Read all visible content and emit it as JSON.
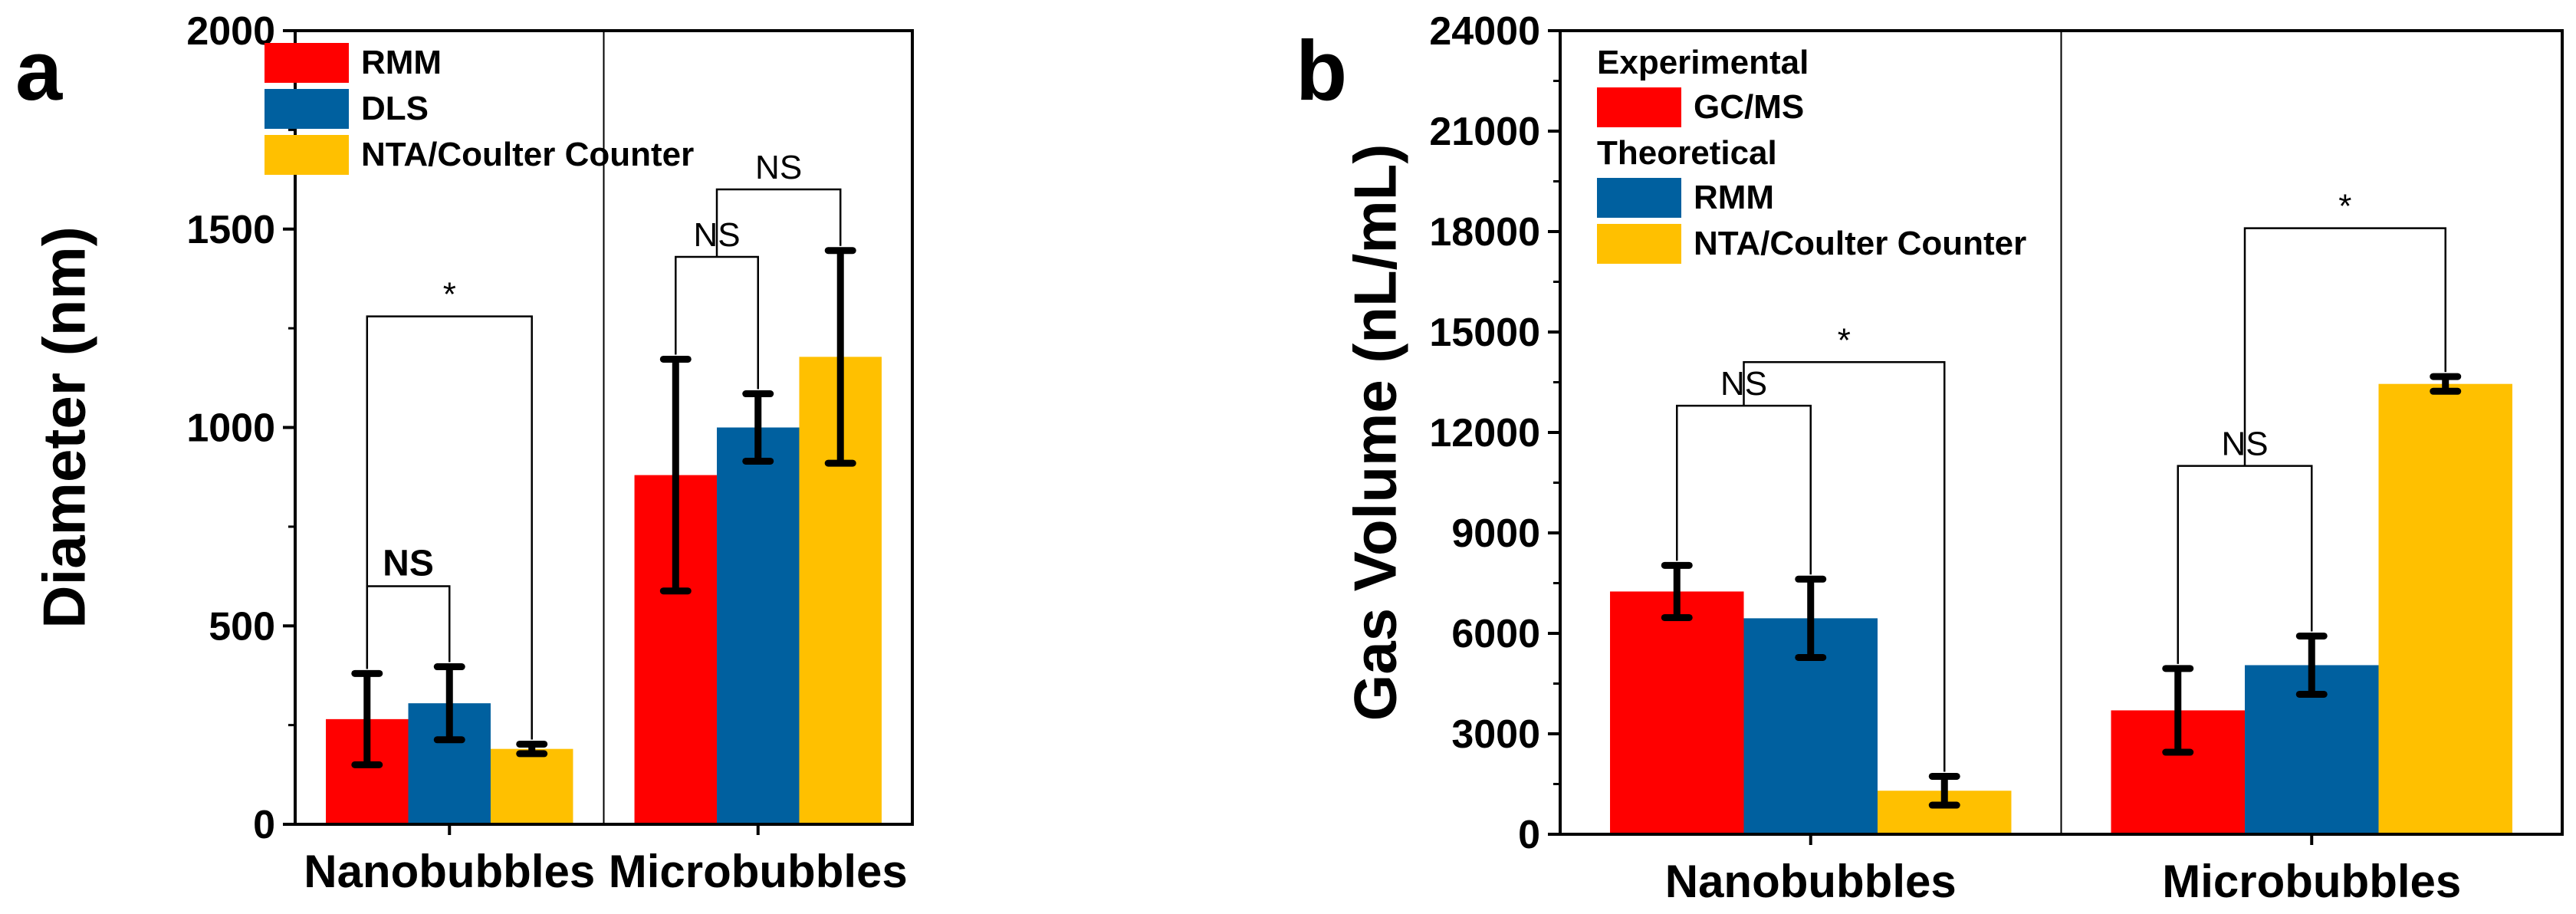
{
  "chart_data": [
    {
      "panel": "a",
      "type": "bar",
      "ylabel": "Diameter (nm)",
      "ylim": [
        0,
        2000
      ],
      "yticks": [
        0,
        500,
        1000,
        1500,
        2000
      ],
      "categories": [
        "Nanobubbles",
        "Microbubbles"
      ],
      "series": [
        {
          "name": "RMM",
          "color": "#ff0000",
          "values": [
            265,
            880
          ],
          "errors": [
            115,
            292
          ]
        },
        {
          "name": "DLS",
          "color": "#00609f",
          "values": [
            305,
            1000
          ],
          "errors": [
            92,
            85
          ]
        },
        {
          "name": "NTA/Coulter Counter",
          "color": "#ffc000",
          "values": [
            190,
            1178
          ],
          "errors": [
            12,
            268
          ]
        }
      ],
      "legend": {
        "position": "top-left",
        "groups": [
          {
            "header": "",
            "items": [
              "RMM",
              "DLS",
              "NTA/Coulter Counter"
            ]
          }
        ]
      },
      "annotations": [
        {
          "text": "NS",
          "category": 0,
          "between": [
            0,
            1
          ],
          "y": 600,
          "style": "bold"
        },
        {
          "text": "*",
          "category": 0,
          "between": [
            0,
            2
          ],
          "y": 1280,
          "style": "normal"
        },
        {
          "text": "NS",
          "category": 1,
          "between": [
            0,
            1
          ],
          "y": 1430,
          "style": "normal"
        },
        {
          "text": "NS",
          "category": 1,
          "between": [
            "0-1",
            2
          ],
          "y": 1600,
          "style": "normal"
        }
      ]
    },
    {
      "panel": "b",
      "type": "bar",
      "ylabel": "Gas Volume (nL/mL)",
      "ylim": [
        0,
        24000
      ],
      "yticks": [
        0,
        3000,
        6000,
        9000,
        12000,
        15000,
        18000,
        21000,
        24000
      ],
      "categories": [
        "Nanobubbles",
        "Microbubbles"
      ],
      "series": [
        {
          "name": "GC/MS",
          "color": "#ff0000",
          "values": [
            7250,
            3700
          ],
          "errors": [
            780,
            1250
          ]
        },
        {
          "name": "RMM",
          "color": "#00609f",
          "values": [
            6450,
            5050
          ],
          "errors": [
            1170,
            870
          ]
        },
        {
          "name": "NTA/Coulter Counter",
          "color": "#ffc000",
          "values": [
            1300,
            13450
          ],
          "errors": [
            430,
            220
          ]
        }
      ],
      "legend": {
        "position": "top-left",
        "groups": [
          {
            "header": "Experimental",
            "items": [
              "GC/MS"
            ]
          },
          {
            "header": "Theoretical",
            "items": [
              "RMM",
              "NTA/Coulter Counter"
            ]
          }
        ]
      },
      "annotations": [
        {
          "text": "NS",
          "category": 0,
          "between": [
            0,
            1
          ],
          "y": 12800,
          "style": "normal"
        },
        {
          "text": "*",
          "category": 0,
          "between": [
            "0-1",
            2
          ],
          "y": 14100,
          "style": "normal"
        },
        {
          "text": "NS",
          "category": 1,
          "between": [
            0,
            1
          ],
          "y": 11000,
          "style": "normal"
        },
        {
          "text": "*",
          "category": 1,
          "between": [
            "0-1",
            2
          ],
          "y": 18100,
          "style": "normal"
        }
      ]
    }
  ]
}
